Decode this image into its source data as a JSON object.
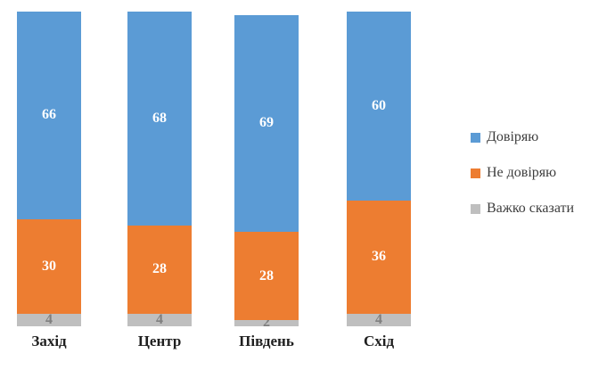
{
  "chart_data": {
    "type": "bar",
    "subtype": "stacked-100-column",
    "title": "",
    "xlabel": "",
    "ylabel": "",
    "ylim": [
      0,
      100
    ],
    "grid": false,
    "axes_visible": false,
    "background_color": "#FFFFFF",
    "categories": [
      "Захід",
      "Центр",
      "Південь",
      "Схід"
    ],
    "series": [
      {
        "name": "Довіряю",
        "color": "#5B9BD5",
        "label_color": "#FFFFFF",
        "values": [
          66,
          68,
          69,
          60
        ]
      },
      {
        "name": "Не довіряю",
        "color": "#ED7D31",
        "label_color": "#FFFFFF",
        "values": [
          30,
          28,
          28,
          36
        ]
      },
      {
        "name": "Важко сказати",
        "color": "#BFBFBF",
        "label_color": "#7F7F7F",
        "values": [
          4,
          4,
          2,
          4
        ]
      }
    ],
    "legend": {
      "position": "right",
      "items": [
        "Довіряю",
        "Не довіряю",
        "Важко сказати"
      ]
    }
  }
}
